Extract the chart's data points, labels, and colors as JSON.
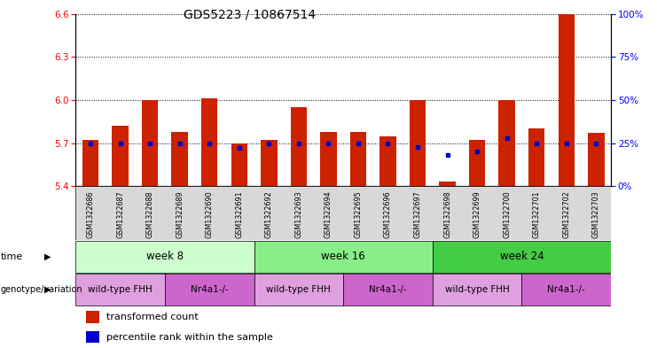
{
  "title": "GDS5223 / 10867514",
  "samples": [
    "GSM1322686",
    "GSM1322687",
    "GSM1322688",
    "GSM1322689",
    "GSM1322690",
    "GSM1322691",
    "GSM1322692",
    "GSM1322693",
    "GSM1322694",
    "GSM1322695",
    "GSM1322696",
    "GSM1322697",
    "GSM1322698",
    "GSM1322699",
    "GSM1322700",
    "GSM1322701",
    "GSM1322702",
    "GSM1322703"
  ],
  "transformed_count": [
    5.72,
    5.82,
    6.0,
    5.78,
    6.01,
    5.7,
    5.72,
    5.95,
    5.78,
    5.78,
    5.75,
    6.0,
    5.43,
    5.72,
    6.0,
    5.8,
    6.6,
    5.77
  ],
  "percentile_rank": [
    25,
    25,
    25,
    25,
    25,
    22,
    25,
    25,
    25,
    25,
    25,
    23,
    18,
    20,
    28,
    25,
    25,
    25
  ],
  "ylim_left": [
    5.4,
    6.6
  ],
  "ylim_right": [
    0,
    100
  ],
  "yticks_left": [
    5.4,
    5.7,
    6.0,
    6.3,
    6.6
  ],
  "yticks_right": [
    0,
    25,
    50,
    75,
    100
  ],
  "bar_color": "#cc2200",
  "dot_color": "#0000cc",
  "bar_width": 0.55,
  "time_groups": [
    {
      "label": "week 8",
      "start": 0,
      "end": 5,
      "color": "#ccffcc"
    },
    {
      "label": "week 16",
      "start": 6,
      "end": 11,
      "color": "#88ee88"
    },
    {
      "label": "week 24",
      "start": 12,
      "end": 17,
      "color": "#44cc44"
    }
  ],
  "genotype_groups": [
    {
      "label": "wild-type FHH",
      "start": 0,
      "end": 2,
      "color": "#e0a0e0"
    },
    {
      "label": "Nr4a1-/-",
      "start": 3,
      "end": 5,
      "color": "#cc66cc"
    },
    {
      "label": "wild-type FHH",
      "start": 6,
      "end": 8,
      "color": "#e0a0e0"
    },
    {
      "label": "Nr4a1-/-",
      "start": 9,
      "end": 11,
      "color": "#cc66cc"
    },
    {
      "label": "wild-type FHH",
      "start": 12,
      "end": 14,
      "color": "#e0a0e0"
    },
    {
      "label": "Nr4a1-/-",
      "start": 15,
      "end": 17,
      "color": "#cc66cc"
    }
  ]
}
